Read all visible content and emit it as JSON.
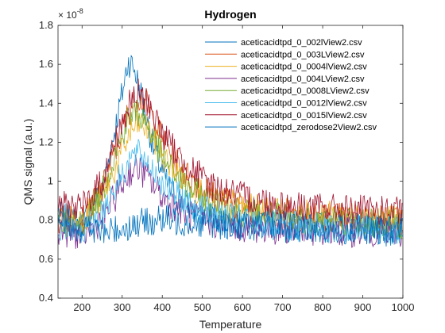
{
  "chart_data": {
    "type": "line",
    "title": "Hydrogen",
    "xlabel": "Temperature",
    "ylabel": "QMS signal (a.u.)",
    "y_multiplier_label": "× 10",
    "y_multiplier_exponent": "-8",
    "xlim": [
      140,
      1000
    ],
    "ylim": [
      0.4,
      1.8
    ],
    "x_ticks": [
      200,
      300,
      400,
      500,
      600,
      700,
      800,
      900,
      1000
    ],
    "y_ticks": [
      0.4,
      0.6,
      0.8,
      1,
      1.2,
      1.4,
      1.6,
      1.8
    ],
    "x_tick_labels": [
      "200",
      "300",
      "400",
      "500",
      "600",
      "700",
      "800",
      "900",
      "1000"
    ],
    "y_tick_labels": [
      "0.4",
      "0.6",
      "0.8",
      "1",
      "1.2",
      "1.4",
      "1.6",
      "1.8"
    ],
    "legend_position": "top-right",
    "grid": false,
    "series": [
      {
        "name": "aceticacidtpd_0_002lView2.csv",
        "color": "#0072BD",
        "x": [
          140,
          200,
          250,
          280,
          300,
          315,
          330,
          350,
          380,
          420,
          480,
          550,
          650,
          750,
          850,
          1000
        ],
        "y": [
          0.82,
          0.78,
          0.95,
          1.25,
          1.45,
          1.62,
          1.58,
          1.42,
          1.15,
          0.95,
          0.85,
          0.8,
          0.78,
          0.77,
          0.76,
          0.75
        ]
      },
      {
        "name": "aceticacidtpd_0_003LView2.csv",
        "color": "#D95319",
        "x": [
          140,
          200,
          250,
          290,
          320,
          340,
          360,
          400,
          450,
          520,
          600,
          700,
          800,
          900,
          1000
        ],
        "y": [
          0.8,
          0.8,
          0.95,
          1.2,
          1.38,
          1.44,
          1.4,
          1.22,
          1.05,
          0.93,
          0.87,
          0.83,
          0.82,
          0.81,
          0.8
        ]
      },
      {
        "name": "aceticacidtpd_0_0004lView2.csv",
        "color": "#EDB120",
        "x": [
          140,
          200,
          250,
          290,
          320,
          345,
          370,
          410,
          470,
          540,
          620,
          720,
          820,
          920,
          1000
        ],
        "y": [
          0.82,
          0.8,
          0.92,
          1.1,
          1.25,
          1.3,
          1.25,
          1.1,
          0.98,
          0.9,
          0.86,
          0.83,
          0.82,
          0.81,
          0.8
        ]
      },
      {
        "name": "aceticacidtpd_0_004LView2.csv",
        "color": "#7E2F8E",
        "x": [
          140,
          200,
          250,
          290,
          320,
          340,
          370,
          410,
          470,
          540,
          620,
          720,
          820,
          920,
          1000
        ],
        "y": [
          0.75,
          0.72,
          0.8,
          0.95,
          1.05,
          1.07,
          1.0,
          0.9,
          0.82,
          0.78,
          0.76,
          0.75,
          0.74,
          0.74,
          0.73
        ]
      },
      {
        "name": "aceticacidtpd_0_0008LView2.csv",
        "color": "#77AC30",
        "x": [
          140,
          200,
          250,
          290,
          315,
          335,
          360,
          400,
          460,
          530,
          610,
          710,
          810,
          910,
          1000
        ],
        "y": [
          0.8,
          0.78,
          0.95,
          1.18,
          1.32,
          1.36,
          1.3,
          1.12,
          0.97,
          0.88,
          0.84,
          0.81,
          0.8,
          0.79,
          0.78
        ]
      },
      {
        "name": "aceticacidtpd_0_0012lView2.csv",
        "color": "#4DBEEE",
        "x": [
          140,
          200,
          250,
          290,
          320,
          345,
          370,
          410,
          470,
          540,
          620,
          720,
          820,
          920,
          1000
        ],
        "y": [
          0.76,
          0.74,
          0.85,
          1.0,
          1.12,
          1.14,
          1.08,
          0.97,
          0.88,
          0.82,
          0.79,
          0.77,
          0.76,
          0.76,
          0.75
        ]
      },
      {
        "name": "aceticacidtpd_0_0015lView2.csv",
        "color": "#A2142F",
        "x": [
          140,
          200,
          250,
          290,
          320,
          340,
          365,
          400,
          450,
          520,
          600,
          700,
          800,
          900,
          1000
        ],
        "y": [
          0.88,
          0.86,
          1.0,
          1.25,
          1.4,
          1.45,
          1.4,
          1.25,
          1.1,
          0.98,
          0.92,
          0.88,
          0.86,
          0.85,
          0.84
        ]
      },
      {
        "name": "aceticacidtpd_zerodose2View2.csv",
        "color": "#0072BD",
        "x": [
          140,
          200,
          260,
          300,
          340,
          380,
          420,
          480,
          550,
          650,
          750,
          850,
          1000
        ],
        "y": [
          0.8,
          0.76,
          0.74,
          0.76,
          0.78,
          0.8,
          0.8,
          0.79,
          0.78,
          0.77,
          0.76,
          0.75,
          0.74
        ]
      }
    ]
  }
}
